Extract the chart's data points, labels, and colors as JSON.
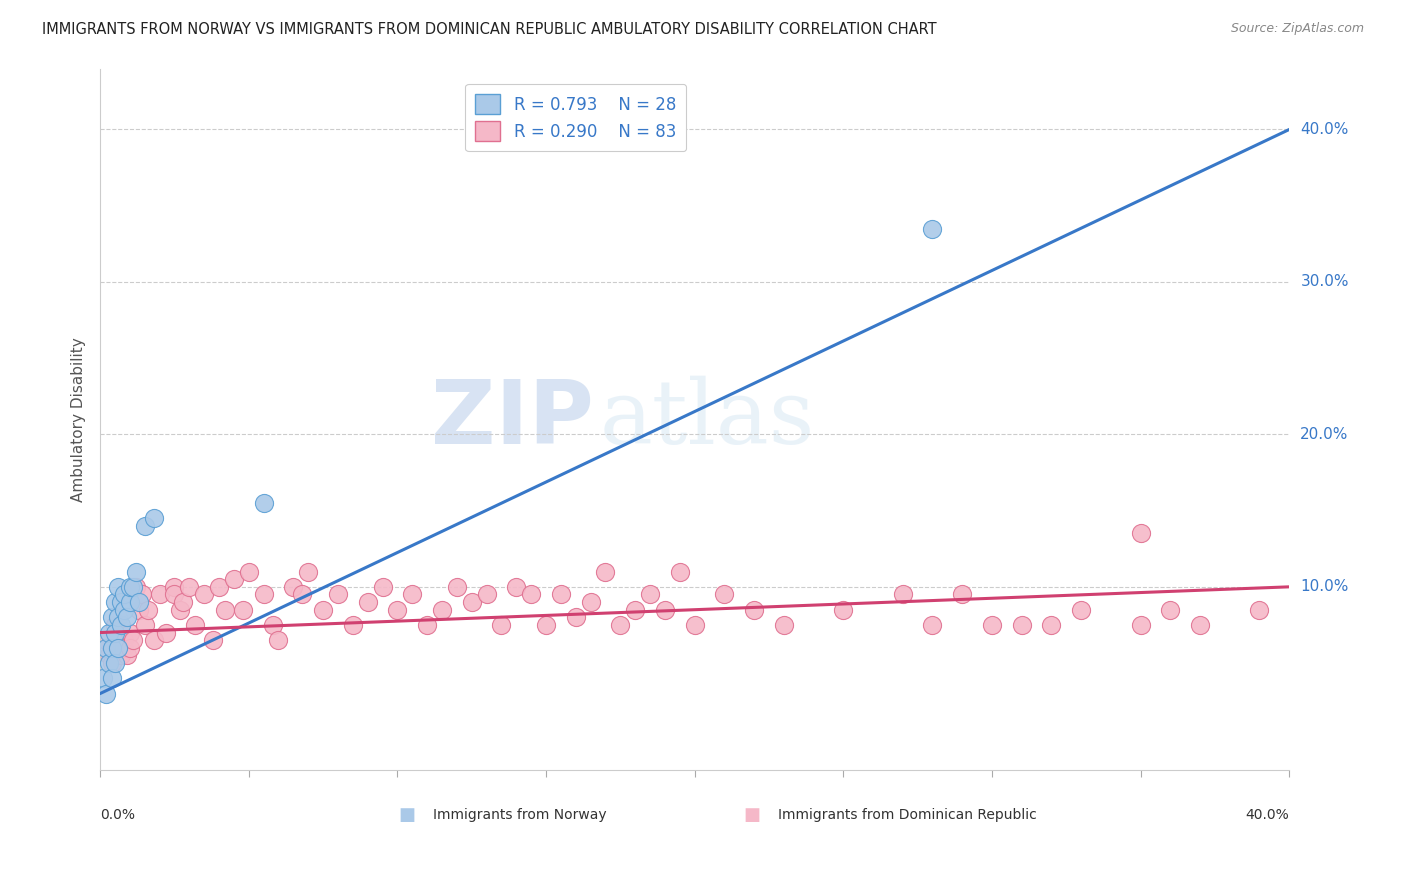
{
  "title": "IMMIGRANTS FROM NORWAY VS IMMIGRANTS FROM DOMINICAN REPUBLIC AMBULATORY DISABILITY CORRELATION CHART",
  "source": "Source: ZipAtlas.com",
  "ylabel": "Ambulatory Disability",
  "yticks": [
    "10.0%",
    "20.0%",
    "30.0%",
    "40.0%"
  ],
  "ytick_vals": [
    0.1,
    0.2,
    0.3,
    0.4
  ],
  "xlim": [
    0.0,
    0.4
  ],
  "ylim": [
    -0.02,
    0.44
  ],
  "norway_color": "#aac9e8",
  "norway_edge": "#5a9fd4",
  "dr_color": "#f5b8c8",
  "dr_edge": "#e07090",
  "norway_line_color": "#3878c8",
  "dr_line_color": "#d04070",
  "legend_norway_label": "R = 0.793    N = 28",
  "legend_dr_label": "R = 0.290    N = 83",
  "legend_label1": "Immigrants from Norway",
  "legend_label2": "Immigrants from Dominican Republic",
  "norway_x": [
    0.001,
    0.002,
    0.002,
    0.003,
    0.003,
    0.004,
    0.004,
    0.004,
    0.005,
    0.005,
    0.005,
    0.006,
    0.006,
    0.006,
    0.007,
    0.007,
    0.008,
    0.008,
    0.009,
    0.01,
    0.01,
    0.011,
    0.012,
    0.013,
    0.015,
    0.018,
    0.055,
    0.28
  ],
  "norway_y": [
    0.04,
    0.03,
    0.06,
    0.05,
    0.07,
    0.06,
    0.04,
    0.08,
    0.07,
    0.05,
    0.09,
    0.06,
    0.08,
    0.1,
    0.075,
    0.09,
    0.085,
    0.095,
    0.08,
    0.09,
    0.1,
    0.1,
    0.11,
    0.09,
    0.14,
    0.145,
    0.155,
    0.335
  ],
  "dr_x": [
    0.002,
    0.003,
    0.004,
    0.005,
    0.005,
    0.006,
    0.007,
    0.007,
    0.008,
    0.008,
    0.009,
    0.01,
    0.01,
    0.011,
    0.012,
    0.013,
    0.014,
    0.015,
    0.016,
    0.018,
    0.02,
    0.022,
    0.025,
    0.025,
    0.027,
    0.028,
    0.03,
    0.032,
    0.035,
    0.038,
    0.04,
    0.042,
    0.045,
    0.048,
    0.05,
    0.055,
    0.058,
    0.06,
    0.065,
    0.068,
    0.07,
    0.075,
    0.08,
    0.085,
    0.09,
    0.095,
    0.1,
    0.105,
    0.11,
    0.115,
    0.12,
    0.125,
    0.13,
    0.135,
    0.14,
    0.145,
    0.15,
    0.155,
    0.16,
    0.165,
    0.17,
    0.175,
    0.18,
    0.185,
    0.19,
    0.195,
    0.2,
    0.21,
    0.22,
    0.23,
    0.25,
    0.27,
    0.29,
    0.31,
    0.33,
    0.35,
    0.37,
    0.39,
    0.35,
    0.3,
    0.28,
    0.36,
    0.32
  ],
  "dr_y": [
    0.065,
    0.055,
    0.05,
    0.075,
    0.055,
    0.07,
    0.06,
    0.055,
    0.065,
    0.06,
    0.055,
    0.07,
    0.06,
    0.065,
    0.1,
    0.085,
    0.095,
    0.075,
    0.085,
    0.065,
    0.095,
    0.07,
    0.1,
    0.095,
    0.085,
    0.09,
    0.1,
    0.075,
    0.095,
    0.065,
    0.1,
    0.085,
    0.105,
    0.085,
    0.11,
    0.095,
    0.075,
    0.065,
    0.1,
    0.095,
    0.11,
    0.085,
    0.095,
    0.075,
    0.09,
    0.1,
    0.085,
    0.095,
    0.075,
    0.085,
    0.1,
    0.09,
    0.095,
    0.075,
    0.1,
    0.095,
    0.075,
    0.095,
    0.08,
    0.09,
    0.11,
    0.075,
    0.085,
    0.095,
    0.085,
    0.11,
    0.075,
    0.095,
    0.085,
    0.075,
    0.085,
    0.095,
    0.095,
    0.075,
    0.085,
    0.135,
    0.075,
    0.085,
    0.075,
    0.075,
    0.075,
    0.085,
    0.075
  ]
}
